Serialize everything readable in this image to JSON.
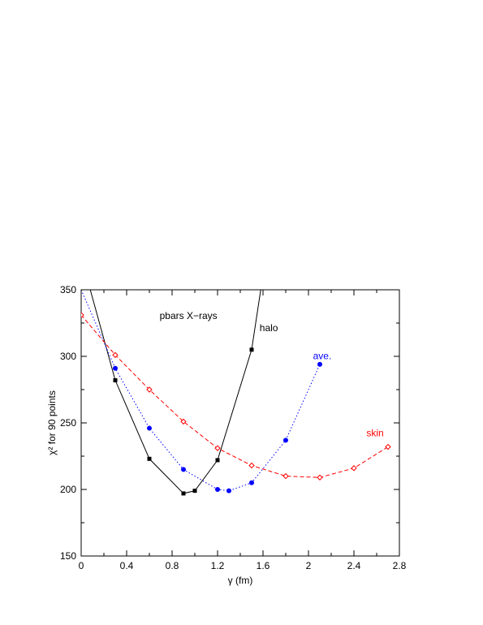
{
  "chart_data": {
    "type": "line",
    "xlabel": "γ (fm)",
    "ylabel": "χ² for 90 points",
    "xlim": [
      0,
      2.8
    ],
    "ylim": [
      150,
      350
    ],
    "xticks": [
      0,
      0.4,
      0.8,
      1.2,
      1.6,
      2,
      2.4,
      2.8
    ],
    "xtick_labels": [
      "0",
      "0.4",
      "0.8",
      "1.2",
      "1.6",
      "2",
      "2.4",
      "2.8"
    ],
    "yticks": [
      150,
      200,
      250,
      300,
      350
    ],
    "ytick_labels": [
      "150",
      "200",
      "250",
      "300",
      "350"
    ],
    "grid": false,
    "annotations": [
      {
        "text": "pbars X−rays",
        "x": 0.69,
        "y": 328,
        "color": "#000000"
      },
      {
        "text": "halo",
        "x": 1.57,
        "y": 319,
        "color": "#000000"
      },
      {
        "text": "ave.",
        "x": 2.04,
        "y": 298,
        "color": "#0000ff"
      },
      {
        "text": "skin",
        "x": 2.51,
        "y": 240,
        "color": "#ff0000"
      }
    ],
    "series": [
      {
        "color": "#000000",
        "line": "solid",
        "marker": "filled-square",
        "x": [
          0.3,
          0.6,
          0.9,
          1.0,
          1.2,
          1.5
        ],
        "y": [
          282,
          223,
          197,
          199,
          222,
          305
        ],
        "curve_x": [
          0.08,
          0.3,
          0.6,
          0.9,
          1.0,
          1.2,
          1.5,
          1.58
        ],
        "curve_y": [
          350,
          282,
          223,
          197,
          199,
          222,
          305,
          350
        ]
      },
      {
        "color": "#0000ff",
        "line": "dotted",
        "marker": "filled-circle",
        "x": [
          0.3,
          0.6,
          0.9,
          1.2,
          1.3,
          1.5,
          1.8,
          2.1
        ],
        "y": [
          291,
          246,
          215,
          200,
          199,
          205,
          237,
          294
        ],
        "curve_x": [
          0,
          0.3,
          0.6,
          0.9,
          1.2,
          1.3,
          1.5,
          1.8,
          2.1
        ],
        "curve_y": [
          350,
          291,
          246,
          215,
          200,
          199,
          205,
          237,
          294
        ]
      },
      {
        "color": "#ff0000",
        "line": "dashed",
        "marker": "open-diamond",
        "x": [
          0,
          0.3,
          0.6,
          0.9,
          1.2,
          1.5,
          1.8,
          2.1,
          2.4,
          2.7
        ],
        "y": [
          331,
          301,
          275,
          251,
          231,
          218,
          210,
          209,
          216,
          232
        ],
        "curve_x": [
          0,
          0.3,
          0.6,
          0.9,
          1.2,
          1.5,
          1.8,
          2.1,
          2.4,
          2.7
        ],
        "curve_y": [
          331,
          301,
          275,
          251,
          231,
          218,
          210,
          209,
          216,
          232
        ]
      }
    ]
  }
}
